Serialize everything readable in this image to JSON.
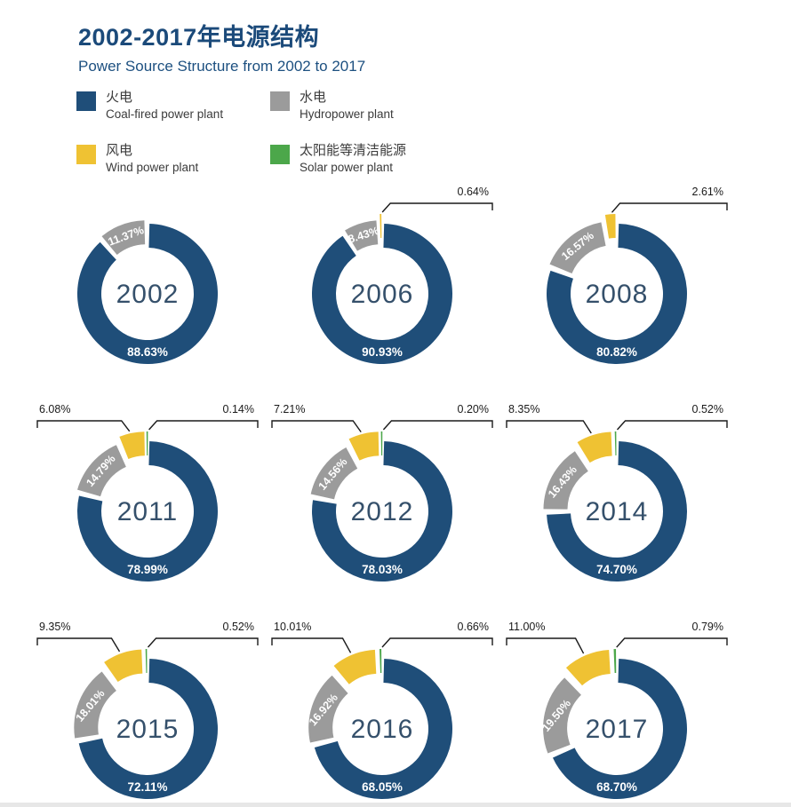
{
  "header": {
    "title": "2002-2017年电源结构",
    "subtitle": "Power Source Structure from 2002 to 2017"
  },
  "legend": {
    "items": [
      {
        "key": "coal",
        "label_zh": "火电",
        "label_en": "Coal-fired power plant",
        "color": "#1F4E79"
      },
      {
        "key": "hydro",
        "label_zh": "水电",
        "label_en": "Hydropower plant",
        "color": "#9B9B9B"
      },
      {
        "key": "wind",
        "label_zh": "风电",
        "label_en": "Wind power plant",
        "color": "#EFC233"
      },
      {
        "key": "solar",
        "label_zh": "太阳能等清洁能源",
        "label_en": "Solar power plant",
        "color": "#4CA74A"
      }
    ]
  },
  "chart_data": {
    "type": "pie",
    "subtype": "donut-multiples-3x3",
    "title": "2002-2017年电源结构",
    "subtitle": "Power Source Structure from 2002 to 2017",
    "unit": "%",
    "legend_position": "top-left",
    "series_order": [
      "coal",
      "hydro",
      "wind",
      "solar"
    ],
    "series_names": {
      "coal": "火电 Coal-fired power plant",
      "hydro": "水电 Hydropower plant",
      "wind": "风电 Wind power plant",
      "solar": "太阳能等清洁能源 Solar power plant"
    },
    "label_style": {
      "coal": "inside-bottom-white",
      "hydro": "inside-arc-rotated-white",
      "wind": "outside-callout",
      "solar": "outside-callout"
    },
    "charts": [
      {
        "year": "2002",
        "values": {
          "coal": 88.63,
          "hydro": 11.37
        }
      },
      {
        "year": "2006",
        "values": {
          "coal": 90.93,
          "hydro": 8.43,
          "wind": 0.64
        }
      },
      {
        "year": "2008",
        "values": {
          "coal": 80.82,
          "hydro": 16.57,
          "wind": 2.61
        }
      },
      {
        "year": "2011",
        "values": {
          "coal": 78.99,
          "hydro": 14.79,
          "wind": 6.08,
          "solar": 0.14
        }
      },
      {
        "year": "2012",
        "values": {
          "coal": 78.03,
          "hydro": 14.56,
          "wind": 7.21,
          "solar": 0.2
        }
      },
      {
        "year": "2014",
        "values": {
          "coal": 74.7,
          "hydro": 16.43,
          "wind": 8.35,
          "solar": 0.52
        }
      },
      {
        "year": "2015",
        "values": {
          "coal": 72.11,
          "hydro": 18.01,
          "wind": 9.35,
          "solar": 0.52
        }
      },
      {
        "year": "2016",
        "values": {
          "coal": 68.05,
          "hydro": 16.92,
          "wind": 10.01,
          "solar": 0.66
        }
      },
      {
        "year": "2017",
        "values": {
          "coal": 68.7,
          "hydro": 19.5,
          "wind": 11.0,
          "solar": 0.79
        }
      }
    ]
  }
}
